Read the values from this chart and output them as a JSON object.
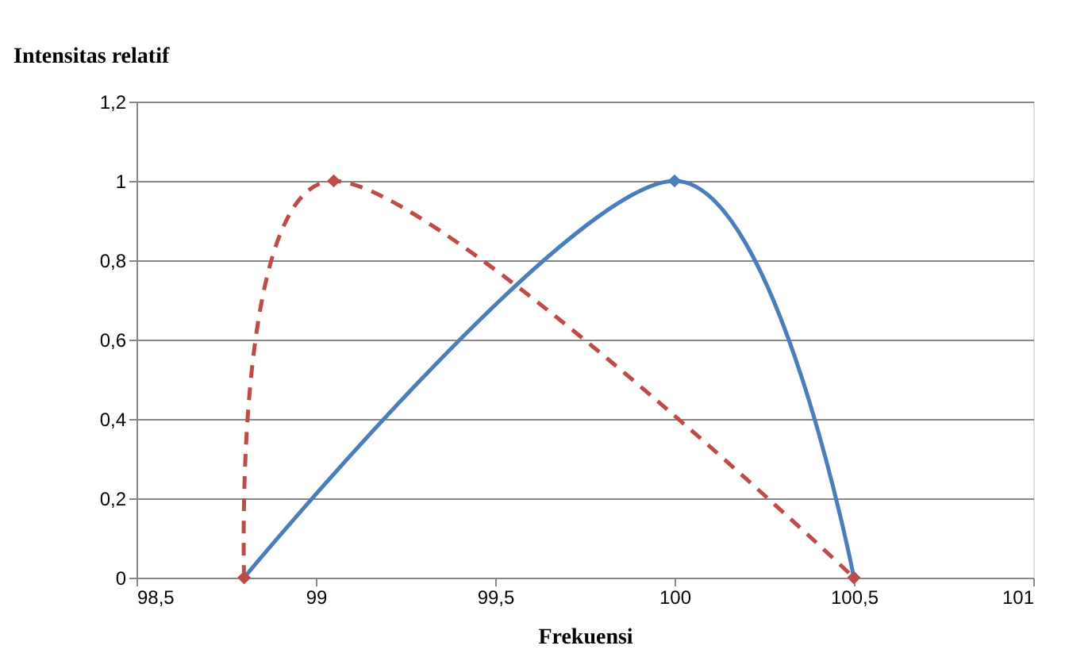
{
  "chart_data": {
    "type": "line",
    "xlabel": "Frekuensi",
    "ylabel": "Intensitas relatif",
    "series": [
      {
        "color": "#4a7ebb",
        "x": [
          98.8,
          100,
          100.5
        ],
        "values": [
          0,
          1,
          0
        ],
        "line_style": "solid",
        "marker": "diamond"
      },
      {
        "color": "#be4b48",
        "x": [
          98.8,
          99.05,
          100.5
        ],
        "values": [
          0,
          1,
          0
        ],
        "line_style": "dashed",
        "marker": "diamond"
      }
    ],
    "xlim": [
      98.5,
      101
    ],
    "xticks": [
      {
        "value": 98.5,
        "label": "98,5"
      },
      99,
      {
        "value": 99.5,
        "label": "99,5"
      },
      100,
      {
        "value": 100.5,
        "label": "100,5"
      },
      101
    ],
    "ylim": [
      0,
      1.2
    ],
    "yticks": [
      0,
      {
        "value": 0.2,
        "label": "0,2"
      },
      {
        "value": 0.4,
        "label": "0,4"
      },
      {
        "value": 0.6,
        "label": "0,6"
      },
      {
        "value": 0.8,
        "label": "0,8"
      },
      1,
      {
        "value": 1.2,
        "label": "1,2"
      }
    ],
    "grid": "y"
  }
}
